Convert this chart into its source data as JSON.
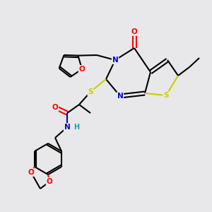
{
  "bg_color": "#e8e8ea",
  "C": "#000000",
  "N": "#0000cc",
  "O": "#ff0000",
  "S": "#cccc00",
  "H": "#00aaaa",
  "figsize": [
    3.0,
    3.0
  ],
  "dpi": 100
}
